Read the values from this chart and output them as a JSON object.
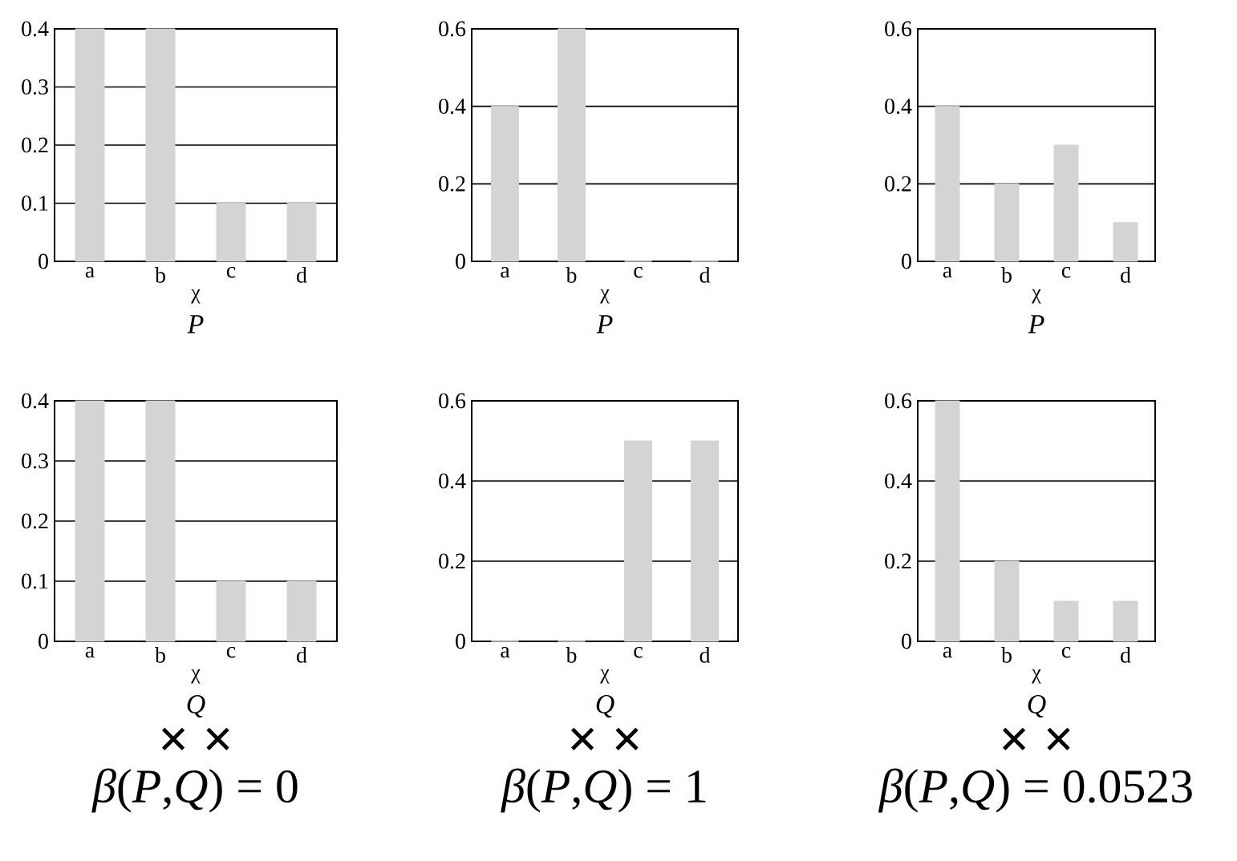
{
  "chart_data": [
    {
      "type": "bar",
      "categories": [
        "a",
        "b",
        "c",
        "d"
      ],
      "values": [
        0.4,
        0.4,
        0.1,
        0.1
      ],
      "color": "#d4d4d4",
      "ylim": [
        0,
        0.4
      ],
      "yticks": [
        0,
        0.1,
        0.2,
        0.3,
        0.4
      ],
      "grid": "y",
      "xlabel": "χ",
      "annotations": [
        "*P*"
      ]
    },
    {
      "type": "bar",
      "categories": [
        "a",
        "b",
        "c",
        "d"
      ],
      "values": [
        0.4,
        0.6,
        0,
        0
      ],
      "color": "#d4d4d4",
      "ylim": [
        0,
        0.6
      ],
      "yticks": [
        0,
        0.2,
        0.4,
        0.6
      ],
      "grid": "y",
      "xlabel": "χ",
      "annotations": [
        "*P*"
      ]
    },
    {
      "type": "bar",
      "categories": [
        "a",
        "b",
        "c",
        "d"
      ],
      "values": [
        0.4,
        0.2,
        0.3,
        0.1
      ],
      "color": "#d4d4d4",
      "ylim": [
        0,
        0.6
      ],
      "yticks": [
        0,
        0.2,
        0.4,
        0.6
      ],
      "grid": "y",
      "xlabel": "χ",
      "annotations": [
        "*P*"
      ]
    },
    {
      "type": "bar",
      "categories": [
        "a",
        "b",
        "c",
        "d"
      ],
      "values": [
        0.4,
        0.4,
        0.1,
        0.1
      ],
      "color": "#d4d4d4",
      "ylim": [
        0,
        0.4
      ],
      "yticks": [
        0,
        0.1,
        0.2,
        0.3,
        0.4
      ],
      "grid": "y",
      "xlabel": "χ",
      "annotations": [
        "*Q*",
        "× ×",
        "*β*(*P*,*Q*) = 0"
      ]
    },
    {
      "type": "bar",
      "categories": [
        "a",
        "b",
        "c",
        "d"
      ],
      "values": [
        0,
        0,
        0.5,
        0.5
      ],
      "color": "#d4d4d4",
      "ylim": [
        0,
        0.6
      ],
      "yticks": [
        0,
        0.2,
        0.4,
        0.6
      ],
      "grid": "y",
      "xlabel": "χ",
      "annotations": [
        "*Q*",
        "× ×",
        "*β*(*P*,*Q*) = 1"
      ]
    },
    {
      "type": "bar",
      "categories": [
        "a",
        "b",
        "c",
        "d"
      ],
      "values": [
        0.6,
        0.2,
        0.1,
        0.1
      ],
      "color": "#d4d4d4",
      "ylim": [
        0,
        0.6
      ],
      "yticks": [
        0,
        0.2,
        0.4,
        0.6
      ],
      "grid": "y",
      "xlabel": "χ",
      "annotations": [
        "*Q*",
        "× ×",
        "*β*(*P*,*Q*) = 0.0523"
      ]
    }
  ]
}
